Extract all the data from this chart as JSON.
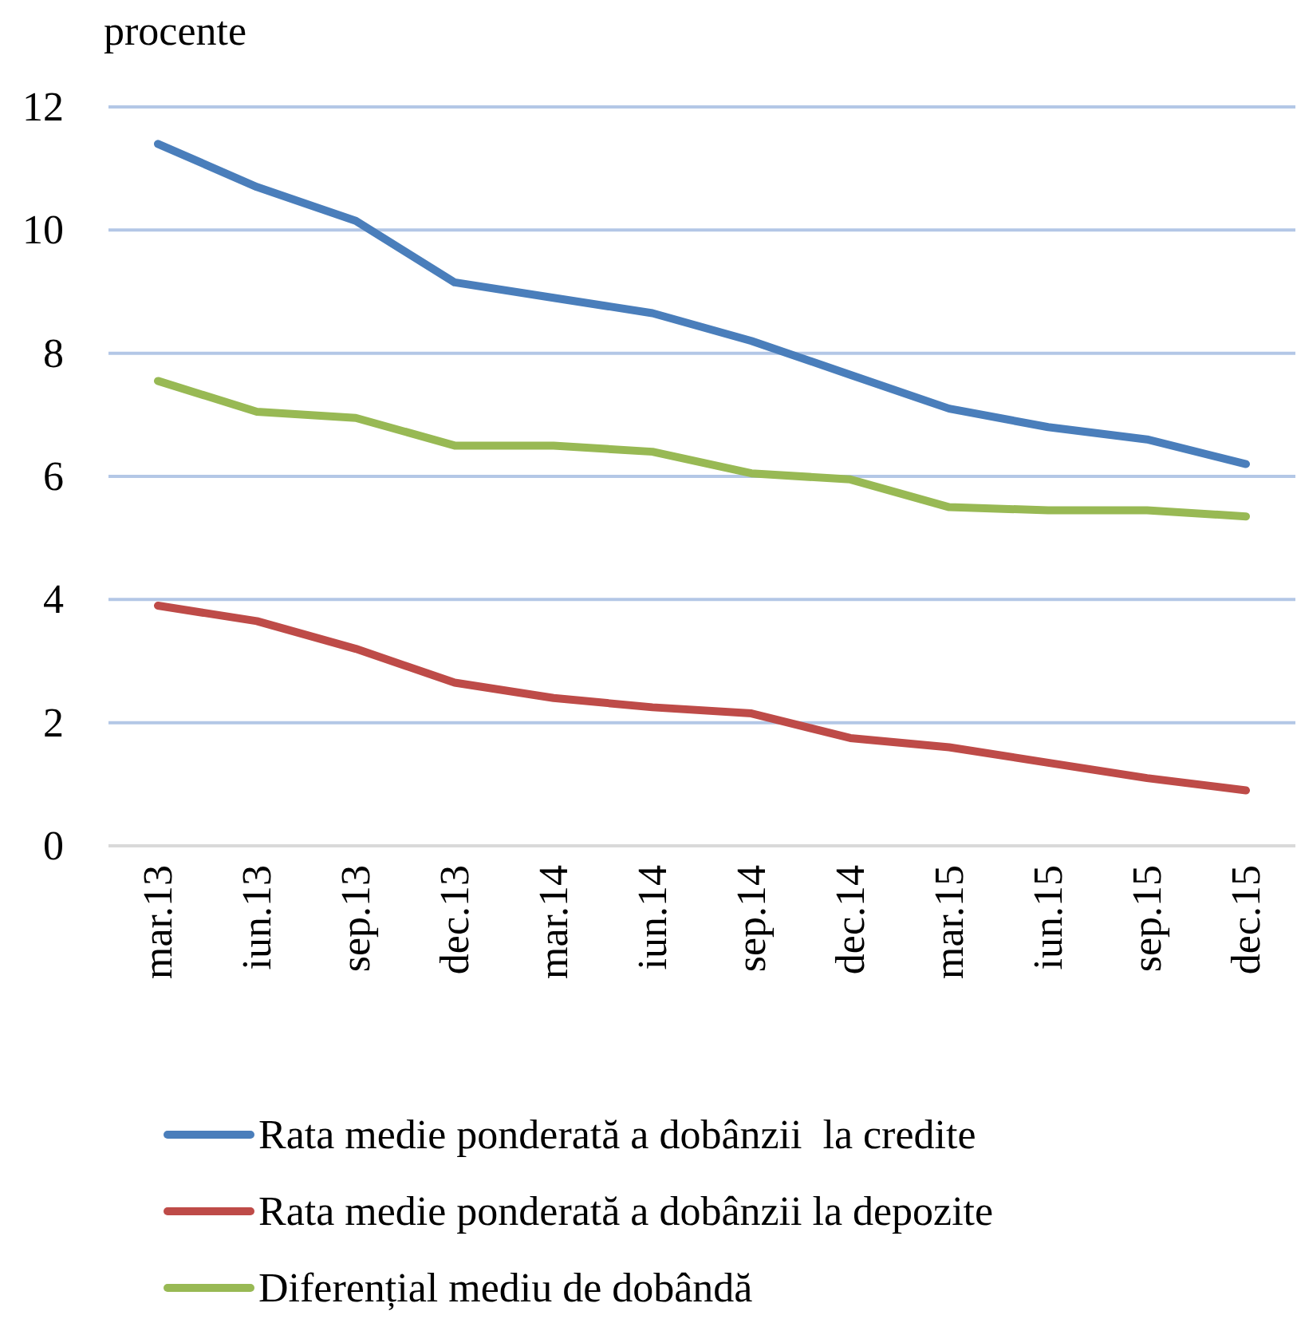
{
  "chart_data": {
    "type": "line",
    "ylabel": "procente",
    "categories": [
      "mar.13",
      "iun.13",
      "sep.13",
      "dec.13",
      "mar.14",
      "iun.14",
      "sep.14",
      "dec.14",
      "mar.15",
      "iun.15",
      "sep.15",
      "dec.15"
    ],
    "series": [
      {
        "name": "Rata medie ponderată a dobânzii  la credite",
        "color": "#4a7ebb",
        "values": [
          11.4,
          10.7,
          10.15,
          9.15,
          8.9,
          8.65,
          8.2,
          7.65,
          7.1,
          6.8,
          6.6,
          6.2
        ]
      },
      {
        "name": "Rata medie ponderată a dobânzii la depozite",
        "color": "#be4b48",
        "values": [
          3.9,
          3.65,
          3.2,
          2.65,
          2.4,
          2.25,
          2.15,
          1.75,
          1.6,
          1.35,
          1.1,
          0.9
        ]
      },
      {
        "name": "Diferențial mediu de dobândă",
        "color": "#98b954",
        "values": [
          7.55,
          7.05,
          6.95,
          6.5,
          6.5,
          6.4,
          6.05,
          5.95,
          5.5,
          5.45,
          5.45,
          5.35
        ]
      }
    ],
    "ylim": [
      0,
      12
    ],
    "yticks": [
      0,
      2,
      4,
      6,
      8,
      10,
      12
    ],
    "grid": "y",
    "legend": "bottom",
    "marker": "none",
    "line_style": "solid"
  }
}
